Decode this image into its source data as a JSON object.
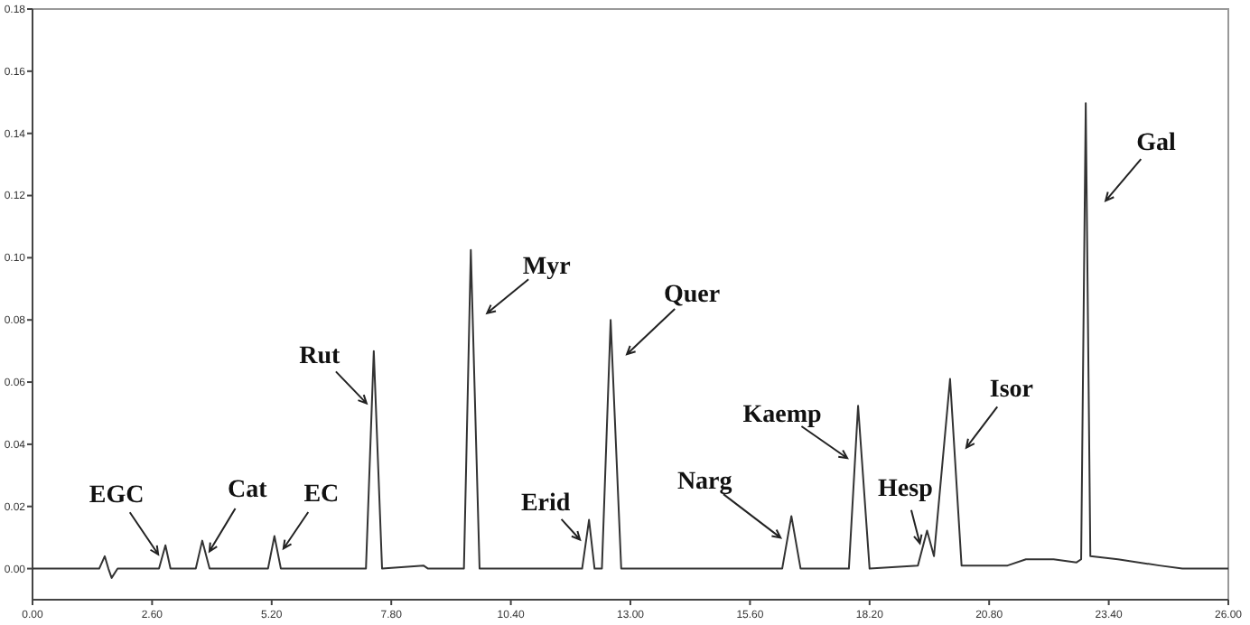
{
  "chart_data": {
    "type": "line",
    "series": [
      {
        "color": "#333333",
        "x": [
          0,
          1.45,
          1.57,
          1.65,
          1.72,
          1.85,
          2.75,
          2.89,
          3.0,
          3.55,
          3.69,
          3.85,
          5.12,
          5.26,
          5.4,
          7.25,
          7.42,
          7.6,
          8.5,
          8.6,
          9.38,
          9.53,
          9.72,
          11.95,
          12.1,
          12.22,
          12.38,
          12.57,
          12.8,
          16.3,
          16.5,
          16.7,
          17.75,
          17.95,
          18.2,
          19.25,
          19.45,
          19.6,
          19.95,
          20.2,
          21.2,
          21.6,
          22.2,
          22.7,
          22.8,
          22.9,
          23.0,
          23.6,
          24.5,
          25.0,
          26
        ],
        "values": [
          0,
          0,
          0.004,
          0,
          -0.003,
          0,
          0,
          0.0075,
          0,
          0,
          0.009,
          0,
          0,
          0.0105,
          0,
          0,
          0.07,
          0,
          0.001,
          0,
          0,
          0.1025,
          0,
          0,
          0.0157,
          0,
          0,
          0.08,
          0,
          0,
          0.0169,
          0,
          0,
          0.0524,
          0,
          0.001,
          0.0122,
          0.004,
          0.061,
          0.001,
          0.001,
          0.003,
          0.003,
          0.002,
          0.003,
          0.1497,
          0.004,
          0.003,
          0.001,
          0,
          0
        ]
      }
    ],
    "xlim": [
      0,
      26
    ],
    "xticks": [
      {
        "value": 0,
        "label": "0.00"
      },
      {
        "value": 2.6,
        "label": "2.60"
      },
      {
        "value": 5.2,
        "label": "5.20"
      },
      {
        "value": 7.8,
        "label": "7.80"
      },
      {
        "value": 10.4,
        "label": "10.40"
      },
      {
        "value": 13,
        "label": "13.00"
      },
      {
        "value": 15.6,
        "label": "15.60"
      },
      {
        "value": 18.2,
        "label": "18.20"
      },
      {
        "value": 20.8,
        "label": "20.80"
      },
      {
        "value": 23.4,
        "label": "23.40"
      },
      {
        "value": 26,
        "label": "26.00"
      }
    ],
    "ylim": [
      -0.01,
      0.18
    ],
    "yticks": [
      {
        "value": 0,
        "label": "0.00"
      },
      {
        "value": 0.02,
        "label": "0.02"
      },
      {
        "value": 0.04,
        "label": "0.04"
      },
      {
        "value": 0.06,
        "label": "0.06"
      },
      {
        "value": 0.08,
        "label": "0.08"
      },
      {
        "value": 0.1,
        "label": "0.10"
      },
      {
        "value": 0.12,
        "label": "0.12"
      },
      {
        "value": 0.14,
        "label": "0.14"
      },
      {
        "value": 0.16,
        "label": "0.16"
      },
      {
        "value": 0.18,
        "label": "0.18"
      }
    ],
    "grid": false,
    "marker": "none",
    "annotations": [
      {
        "text": "EGC",
        "x": 2.89,
        "y": 0.0075
      },
      {
        "text": "Cat",
        "x": 3.69,
        "y": 0.009
      },
      {
        "text": "EC",
        "x": 5.26,
        "y": 0.0105
      },
      {
        "text": "Rut",
        "x": 7.42,
        "y": 0.07
      },
      {
        "text": "Myr",
        "x": 9.53,
        "y": 0.1025
      },
      {
        "text": "Erid",
        "x": 12.1,
        "y": 0.0157
      },
      {
        "text": "Quer",
        "x": 12.57,
        "y": 0.08
      },
      {
        "text": "Narg",
        "x": 16.5,
        "y": 0.0169
      },
      {
        "text": "Kaemp",
        "x": 17.95,
        "y": 0.0524
      },
      {
        "text": "Hesp",
        "x": 19.45,
        "y": 0.0122
      },
      {
        "text": "Isor",
        "x": 19.95,
        "y": 0.061
      },
      {
        "text": "Gal",
        "x": 22.9,
        "y": 0.1497
      }
    ]
  }
}
